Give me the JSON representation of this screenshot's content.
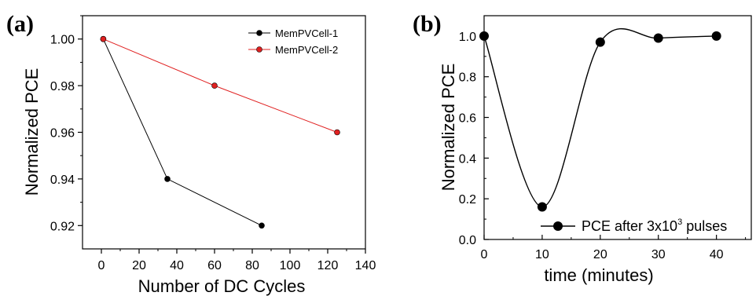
{
  "chart_data": [
    {
      "panel_label": "(a)",
      "type": "line",
      "xlabel": "Number of DC Cycles",
      "ylabel": "Normalized PCE",
      "xlim": [
        -10,
        140
      ],
      "ylim": [
        0.91,
        1.01
      ],
      "xticks": [
        0,
        20,
        40,
        60,
        80,
        100,
        120,
        140
      ],
      "yticks": [
        0.92,
        0.94,
        0.96,
        0.98,
        1.0
      ],
      "ytick_labels": [
        "0.92",
        "0.94",
        "0.96",
        "0.98",
        "1.00"
      ],
      "legend_position": "top-right",
      "grid": false,
      "series": [
        {
          "name": "MemPVCell-1",
          "color": "#000000",
          "x": [
            1,
            35,
            85
          ],
          "y": [
            1.0,
            0.94,
            0.92
          ]
        },
        {
          "name": "MemPVCell-2",
          "color": "#e02020",
          "x": [
            1,
            60,
            125
          ],
          "y": [
            1.0,
            0.98,
            0.96
          ]
        }
      ]
    },
    {
      "panel_label": "(b)",
      "type": "line",
      "xlabel": "time (minutes)",
      "ylabel": "Normalized PCE",
      "xlim": [
        0,
        46
      ],
      "ylim": [
        0,
        1.1
      ],
      "xticks": [
        0,
        10,
        20,
        30,
        40
      ],
      "yticks": [
        0.0,
        0.2,
        0.4,
        0.6,
        0.8,
        1.0
      ],
      "ytick_labels": [
        "0.0",
        "0.2",
        "0.4",
        "0.6",
        "0.8",
        "1.0"
      ],
      "legend_position": "bottom-right",
      "grid": false,
      "series": [
        {
          "name_main": "PCE after 3x10",
          "name_sup": "3",
          "name_tail": " pulses",
          "color": "#000000",
          "smooth": true,
          "x": [
            0,
            10,
            20,
            30,
            40
          ],
          "y": [
            1.0,
            0.16,
            0.97,
            0.99,
            1.0
          ]
        }
      ]
    }
  ]
}
